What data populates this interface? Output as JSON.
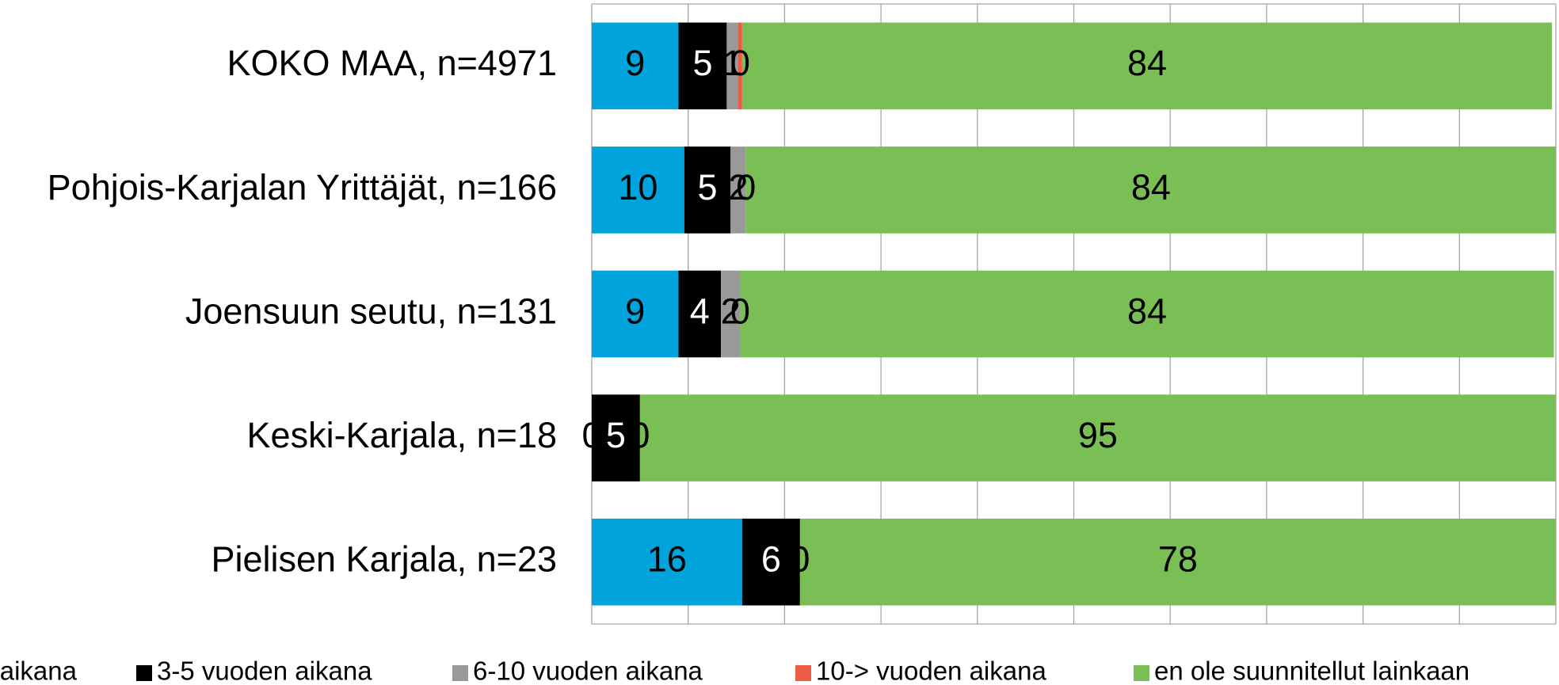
{
  "chart_data": {
    "type": "stacked-bar-horizontal",
    "categories": [
      "KOKO MAA, n=4971",
      "Pohjois-Karjalan Yrittäjät, n=166",
      "Joensuun seutu, n=131",
      "Keski-Karjala, n=18",
      "Pielisen Karjala, n=23"
    ],
    "series": [
      {
        "name": "aikana",
        "color": "#00a3dc",
        "values": [
          9,
          9.6,
          9,
          0,
          15.6
        ],
        "value_labels": [
          "9",
          "10",
          "9",
          "0",
          "16"
        ]
      },
      {
        "name": "3-5 vuoden aikana",
        "color": "#000000",
        "values": [
          5,
          4.8,
          4.4,
          5,
          6
        ],
        "value_labels": [
          "5",
          "5",
          "4",
          "5",
          "6"
        ]
      },
      {
        "name": "6-10 vuoden aikana",
        "color": "#999999",
        "values": [
          1.2,
          1.6,
          2,
          0,
          0
        ],
        "value_labels": [
          "1",
          "2",
          "2",
          "0",
          "0"
        ]
      },
      {
        "name": "10-> vuoden aikana",
        "color": "#ec5b45",
        "values": [
          0.4,
          0,
          0,
          0,
          0
        ],
        "value_labels": [
          "0",
          "0",
          "0",
          "0",
          "0"
        ]
      },
      {
        "name": "en ole suunnitellut lainkaan",
        "color": "#7abf55",
        "values": [
          84,
          84,
          84.4,
          95,
          78.4
        ],
        "value_labels": [
          "84",
          "84",
          "84",
          "95",
          "78"
        ]
      }
    ],
    "xlim": [
      0,
      100
    ],
    "xticks": [
      0,
      10,
      20,
      30,
      40,
      50,
      60,
      70,
      80,
      90,
      100
    ],
    "grid": true,
    "legend": "bottom"
  }
}
